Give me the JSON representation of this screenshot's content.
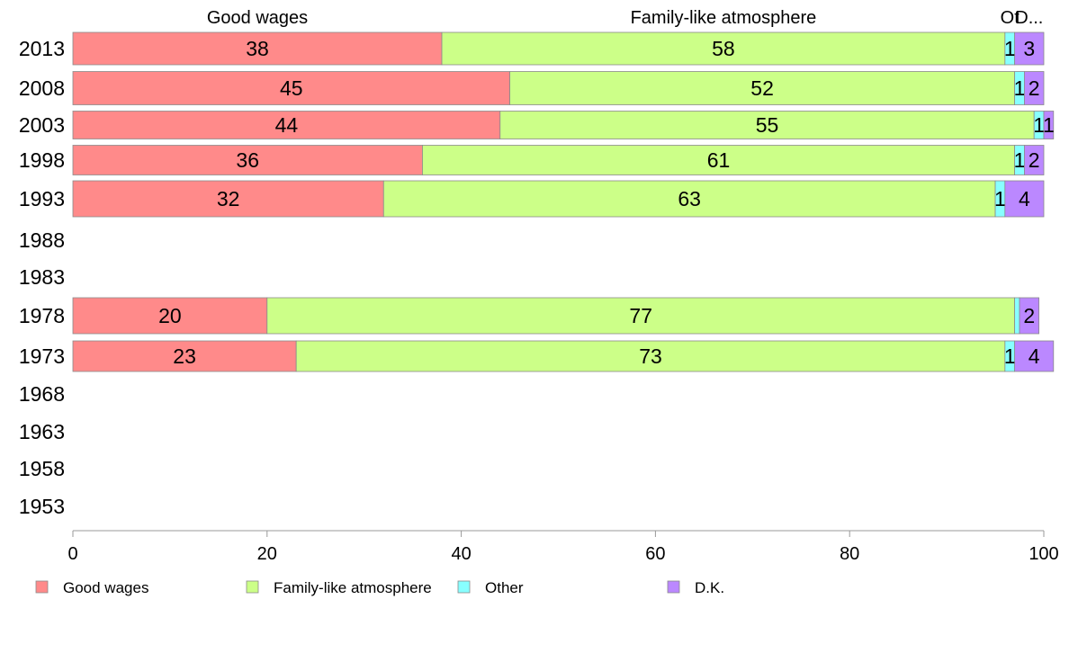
{
  "chart_data": {
    "type": "bar",
    "orientation": "horizontal",
    "stacked": true,
    "categories": [
      "2013",
      "2008",
      "2003",
      "1998",
      "1993",
      "1988",
      "1983",
      "1978",
      "1973",
      "1968",
      "1963",
      "1958",
      "1953"
    ],
    "series": [
      {
        "name": "Good wages",
        "color": "#ff8a8a",
        "values": [
          38,
          45,
          44,
          36,
          32,
          null,
          null,
          20,
          23,
          null,
          null,
          null,
          null
        ]
      },
      {
        "name": "Family-like atmosphere",
        "color": "#ccff88",
        "values": [
          58,
          52,
          55,
          61,
          63,
          null,
          null,
          77,
          73,
          null,
          null,
          null,
          null
        ]
      },
      {
        "name": "Other",
        "color": "#88ffff",
        "values": [
          1,
          1,
          1,
          1,
          1,
          null,
          null,
          0.5,
          1,
          null,
          null,
          null,
          null
        ]
      },
      {
        "name": "D.K.",
        "color": "#bb88ff",
        "values": [
          3,
          2,
          1,
          2,
          4,
          null,
          null,
          2,
          4,
          null,
          null,
          null,
          null
        ]
      }
    ],
    "data_labels": [
      [
        "38",
        "58",
        "1",
        "3"
      ],
      [
        "45",
        "52",
        "1",
        "2"
      ],
      [
        "44",
        "55",
        "1",
        "1"
      ],
      [
        "36",
        "61",
        "1",
        "2"
      ],
      [
        "32",
        "63",
        "1",
        "4"
      ],
      null,
      null,
      [
        "20",
        "77",
        "",
        "2"
      ],
      [
        "23",
        "73",
        "1",
        "4"
      ],
      null,
      null,
      null,
      null
    ],
    "top_labels": [
      "Good wages",
      "Family-like atmosphere",
      "Other",
      "D.K."
    ],
    "top_labels_display": [
      "Good wages",
      "Family-like atmosphere",
      "Ot",
      "D..."
    ],
    "xlim": [
      0,
      100
    ],
    "xticks": [
      0,
      20,
      40,
      60,
      80,
      100
    ],
    "legend": {
      "position": "bottom",
      "items": [
        "Good wages",
        "Family-like atmosphere",
        "Other",
        "D.K."
      ]
    },
    "grid": false
  }
}
